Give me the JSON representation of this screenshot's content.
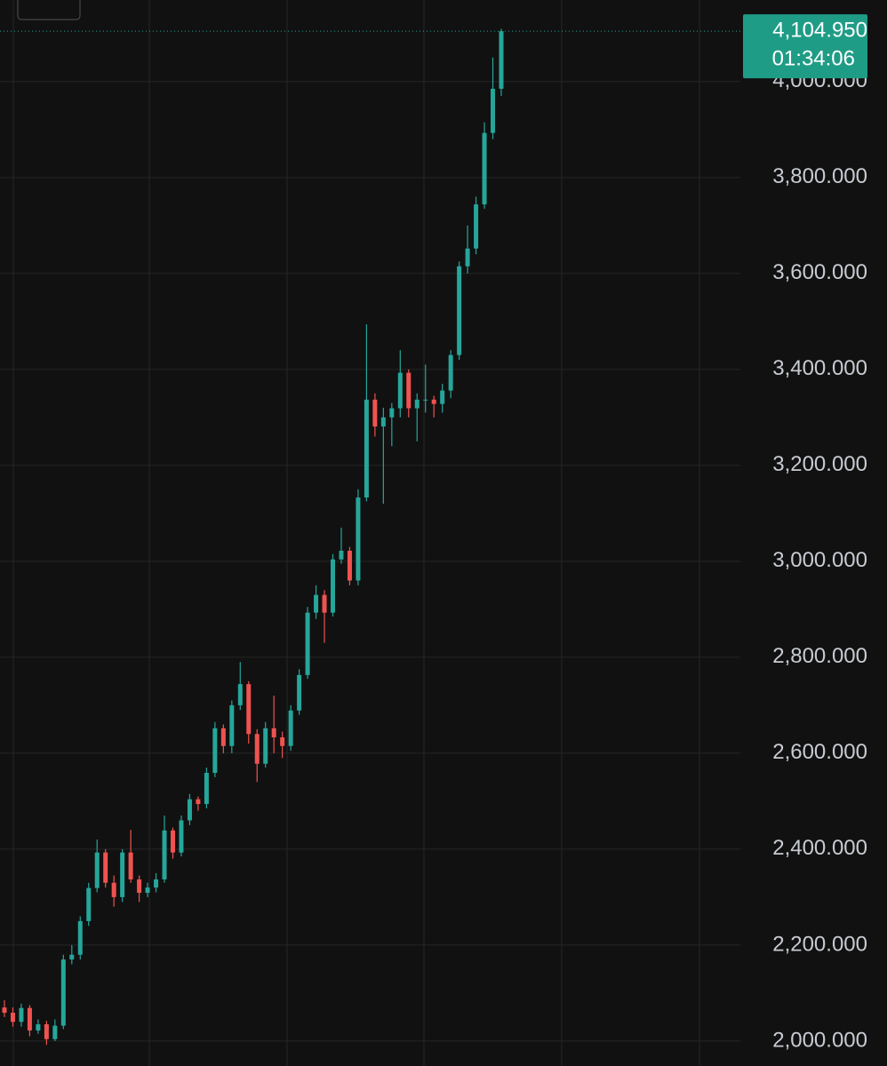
{
  "chart_data": {
    "type": "candlestick",
    "up_color": "#26a69a",
    "down_color": "#ef5350",
    "grid": true,
    "ylim": [
      1948,
      4170
    ],
    "yticks": [
      {
        "value": 2000,
        "label": "2,000.000"
      },
      {
        "value": 2200,
        "label": "2,200.000"
      },
      {
        "value": 2400,
        "label": "2,400.000"
      },
      {
        "value": 2600,
        "label": "2,600.000"
      },
      {
        "value": 2800,
        "label": "2,800.000"
      },
      {
        "value": 3000,
        "label": "3,000.000"
      },
      {
        "value": 3200,
        "label": "3,200.000"
      },
      {
        "value": 3400,
        "label": "3,400.000"
      },
      {
        "value": 3600,
        "label": "3,600.000"
      },
      {
        "value": 3800,
        "label": "3,800.000"
      },
      {
        "value": 4000,
        "label": "4,000.000"
      }
    ],
    "last_price": {
      "value": 4104.95,
      "label": "4,104.950"
    },
    "countdown": "01:34:06",
    "open": [
      2070,
      2059,
      2040,
      2069,
      2022,
      2035,
      2004,
      2032,
      2170,
      2180,
      2250,
      2319,
      2393,
      2330,
      2300,
      2393,
      2337,
      2309,
      2320,
      2337,
      2439,
      2393,
      2460,
      2504,
      2494,
      2559,
      2652,
      2615,
      2700,
      2744,
      2640,
      2578,
      2652,
      2633,
      2615,
      2689,
      2763,
      2893,
      2930,
      2893,
      3004,
      3022,
      2960,
      3133,
      3337,
      3281,
      3300,
      3319,
      3393,
      3319,
      3337,
      3337,
      3328,
      3356,
      3430,
      3615,
      3652,
      3744,
      3893,
      3985
    ],
    "high": [
      2085,
      2070,
      2078,
      2075,
      2045,
      2042,
      2045,
      2180,
      2200,
      2260,
      2330,
      2420,
      2400,
      2345,
      2400,
      2440,
      2345,
      2330,
      2350,
      2470,
      2445,
      2470,
      2515,
      2510,
      2570,
      2665,
      2660,
      2710,
      2790,
      2750,
      2650,
      2665,
      2720,
      2645,
      2700,
      2775,
      2905,
      2950,
      2940,
      3015,
      3070,
      3030,
      3150,
      3494,
      3350,
      3320,
      3330,
      3440,
      3400,
      3350,
      3410,
      3345,
      3370,
      3440,
      3625,
      3700,
      3760,
      3915,
      4050,
      4110
    ],
    "low": [
      2050,
      2030,
      2030,
      2010,
      2015,
      1992,
      2000,
      2025,
      2160,
      2170,
      2240,
      2310,
      2320,
      2280,
      2290,
      2330,
      2290,
      2300,
      2310,
      2330,
      2380,
      2385,
      2450,
      2480,
      2485,
      2550,
      2600,
      2600,
      2690,
      2620,
      2540,
      2570,
      2600,
      2590,
      2605,
      2680,
      2755,
      2880,
      2830,
      2885,
      2995,
      2950,
      2950,
      3125,
      3260,
      3120,
      3240,
      3300,
      3300,
      3250,
      3310,
      3300,
      3310,
      3340,
      3420,
      3600,
      3640,
      3735,
      3880,
      3970
    ],
    "close": [
      2059,
      2040,
      2069,
      2022,
      2035,
      2004,
      2032,
      2170,
      2180,
      2250,
      2319,
      2393,
      2330,
      2300,
      2393,
      2337,
      2309,
      2320,
      2337,
      2439,
      2393,
      2460,
      2504,
      2494,
      2559,
      2652,
      2615,
      2700,
      2744,
      2640,
      2578,
      2652,
      2633,
      2615,
      2689,
      2763,
      2893,
      2930,
      2893,
      3004,
      3022,
      2960,
      3133,
      3337,
      3281,
      3300,
      3319,
      3393,
      3319,
      3337,
      3337,
      3328,
      3356,
      3430,
      3615,
      3652,
      3744,
      3893,
      3985,
      4104.95
    ]
  }
}
